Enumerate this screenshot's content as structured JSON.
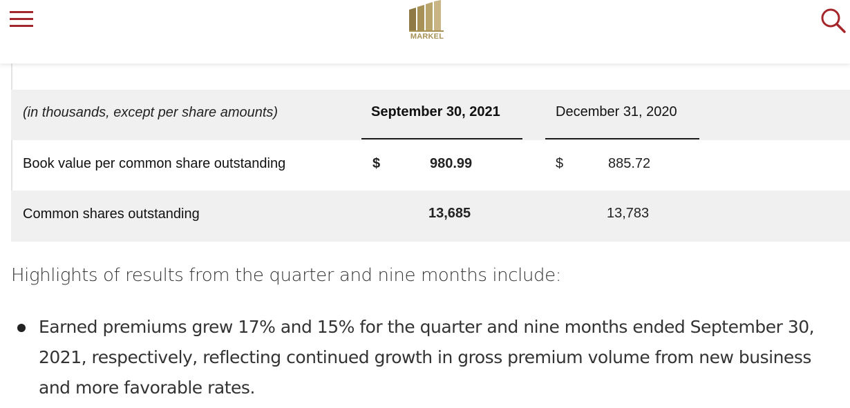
{
  "header": {
    "logo_text": "MARKEL",
    "accent_color": "#a5262a",
    "logo_color": "#a89157",
    "menu_icon": "hamburger-menu-icon",
    "search_icon": "search-icon"
  },
  "table": {
    "header": {
      "label": "(in thousands, except per share amounts)",
      "col1": "September 30, 2021",
      "col2": "December 31, 2020"
    },
    "rows": [
      {
        "label": "Book value per common share outstanding",
        "col1_prefix": "$",
        "col1_value": "980.99",
        "col2_prefix": "$",
        "col2_value": "885.72"
      },
      {
        "label": "Common shares outstanding",
        "col1_prefix": "",
        "col1_value": "13,685",
        "col2_prefix": "",
        "col2_value": "13,783"
      }
    ]
  },
  "highlights": {
    "intro": "Highlights of results from the quarter and nine months include:",
    "bullets": [
      "Earned premiums grew 17% and 15% for the quarter and nine months ended September 30, 2021, respectively, reflecting continued growth in gross premium volume from new business and more favorable rates."
    ]
  }
}
